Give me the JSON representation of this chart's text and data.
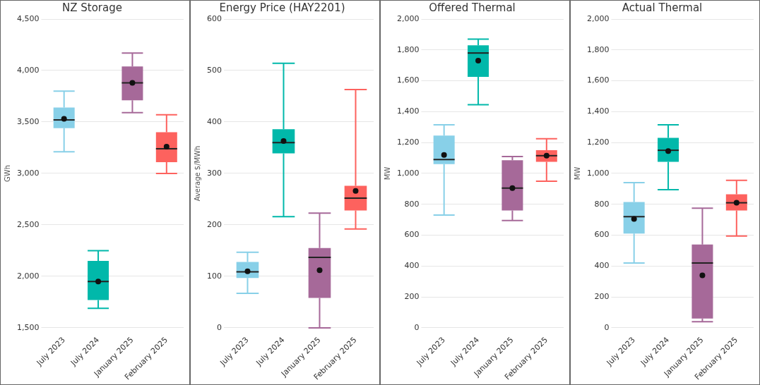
{
  "chart_data": [
    {
      "type": "box",
      "title": "NZ Storage",
      "ylabel": "GWh",
      "categories": [
        "July 2023",
        "July 2024",
        "January 2025",
        "February 2025"
      ],
      "colors": [
        "#88d0e8",
        "#01b8aa",
        "#a66999",
        "#fd625e"
      ],
      "boxes": [
        {
          "low": 3210,
          "q1": 3440,
          "median": 3520,
          "q3": 3640,
          "high": 3800,
          "mean": 3530
        },
        {
          "low": 1690,
          "q1": 1770,
          "median": 1950,
          "q3": 2150,
          "high": 2250,
          "mean": 1950
        },
        {
          "low": 3590,
          "q1": 3710,
          "median": 3880,
          "q3": 4040,
          "high": 4170,
          "mean": 3880
        },
        {
          "low": 3000,
          "q1": 3110,
          "median": 3240,
          "q3": 3400,
          "high": 3570,
          "mean": 3260
        }
      ],
      "ylim": [
        1500,
        4500
      ],
      "yticks": [
        {
          "value": 1500,
          "label": "1,500"
        },
        {
          "value": 2000,
          "label": "2,000"
        },
        {
          "value": 2500,
          "label": "2,500"
        },
        {
          "value": 3000,
          "label": "3,000"
        },
        {
          "value": 3500,
          "label": "3,500"
        },
        {
          "value": 4000,
          "label": "4,000"
        },
        {
          "value": 4500,
          "label": "4,500"
        }
      ],
      "grid": "y"
    },
    {
      "type": "box",
      "title": "Energy Price (HAY2201)",
      "ylabel": "Average $/MWh",
      "categories": [
        "July 2023",
        "July 2024",
        "January 2025",
        "February 2025"
      ],
      "colors": [
        "#88d0e8",
        "#01b8aa",
        "#a66999",
        "#fd625e"
      ],
      "boxes": [
        {
          "low": 67,
          "q1": 97,
          "median": 109,
          "q3": 128,
          "high": 147,
          "mean": 110
        },
        {
          "low": 216,
          "q1": 339,
          "median": 360,
          "q3": 386,
          "high": 514,
          "mean": 363
        },
        {
          "low": 0,
          "q1": 58,
          "median": 137,
          "q3": 155,
          "high": 223,
          "mean": 112
        },
        {
          "low": 192,
          "q1": 228,
          "median": 252,
          "q3": 276,
          "high": 463,
          "mean": 266
        }
      ],
      "ylim": [
        0,
        600
      ],
      "yticks": [
        0,
        100,
        200,
        300,
        400,
        500,
        600
      ],
      "grid": "y"
    },
    {
      "type": "box",
      "title": "Offered Thermal",
      "ylabel": "MW",
      "categories": [
        "July 2023",
        "July 2024",
        "January 2025",
        "February 2025"
      ],
      "colors": [
        "#88d0e8",
        "#01b8aa",
        "#a66999",
        "#fd625e"
      ],
      "boxes": [
        {
          "low": 730,
          "q1": 1060,
          "median": 1090,
          "q3": 1245,
          "high": 1315,
          "mean": 1120
        },
        {
          "low": 1445,
          "q1": 1625,
          "median": 1780,
          "q3": 1830,
          "high": 1870,
          "mean": 1730
        },
        {
          "low": 695,
          "q1": 760,
          "median": 905,
          "q3": 1085,
          "high": 1110,
          "mean": 905
        },
        {
          "low": 950,
          "q1": 1075,
          "median": 1115,
          "q3": 1150,
          "high": 1225,
          "mean": 1115
        }
      ],
      "ylim": [
        0,
        2000
      ],
      "yticks": [
        0,
        200,
        400,
        600,
        800,
        {
          "value": 1000,
          "label": "1,000"
        },
        {
          "value": 1200,
          "label": "1,200"
        },
        {
          "value": 1400,
          "label": "1,400"
        },
        {
          "value": 1600,
          "label": "1,600"
        },
        {
          "value": 1800,
          "label": "1,800"
        },
        {
          "value": 2000,
          "label": "2,000"
        }
      ],
      "grid": "y"
    },
    {
      "type": "box",
      "title": "Actual Thermal",
      "ylabel": "MW",
      "categories": [
        "July 2023",
        "July 2024",
        "January 2025",
        "February 2025"
      ],
      "colors": [
        "#88d0e8",
        "#01b8aa",
        "#a66999",
        "#fd625e"
      ],
      "boxes": [
        {
          "low": 420,
          "q1": 610,
          "median": 720,
          "q3": 815,
          "high": 940,
          "mean": 705
        },
        {
          "low": 895,
          "q1": 1075,
          "median": 1150,
          "q3": 1230,
          "high": 1315,
          "mean": 1145
        },
        {
          "low": 40,
          "q1": 60,
          "median": 420,
          "q3": 540,
          "high": 775,
          "mean": 340
        },
        {
          "low": 595,
          "q1": 760,
          "median": 810,
          "q3": 865,
          "high": 955,
          "mean": 810
        }
      ],
      "ylim": [
        0,
        2000
      ],
      "yticks": [
        0,
        200,
        400,
        600,
        800,
        {
          "value": 1000,
          "label": "1,000"
        },
        {
          "value": 1200,
          "label": "1,200"
        },
        {
          "value": 1400,
          "label": "1,400"
        },
        {
          "value": 1600,
          "label": "1,600"
        },
        {
          "value": 1800,
          "label": "1,800"
        },
        {
          "value": 2000,
          "label": "2,000"
        }
      ],
      "grid": "y"
    }
  ]
}
